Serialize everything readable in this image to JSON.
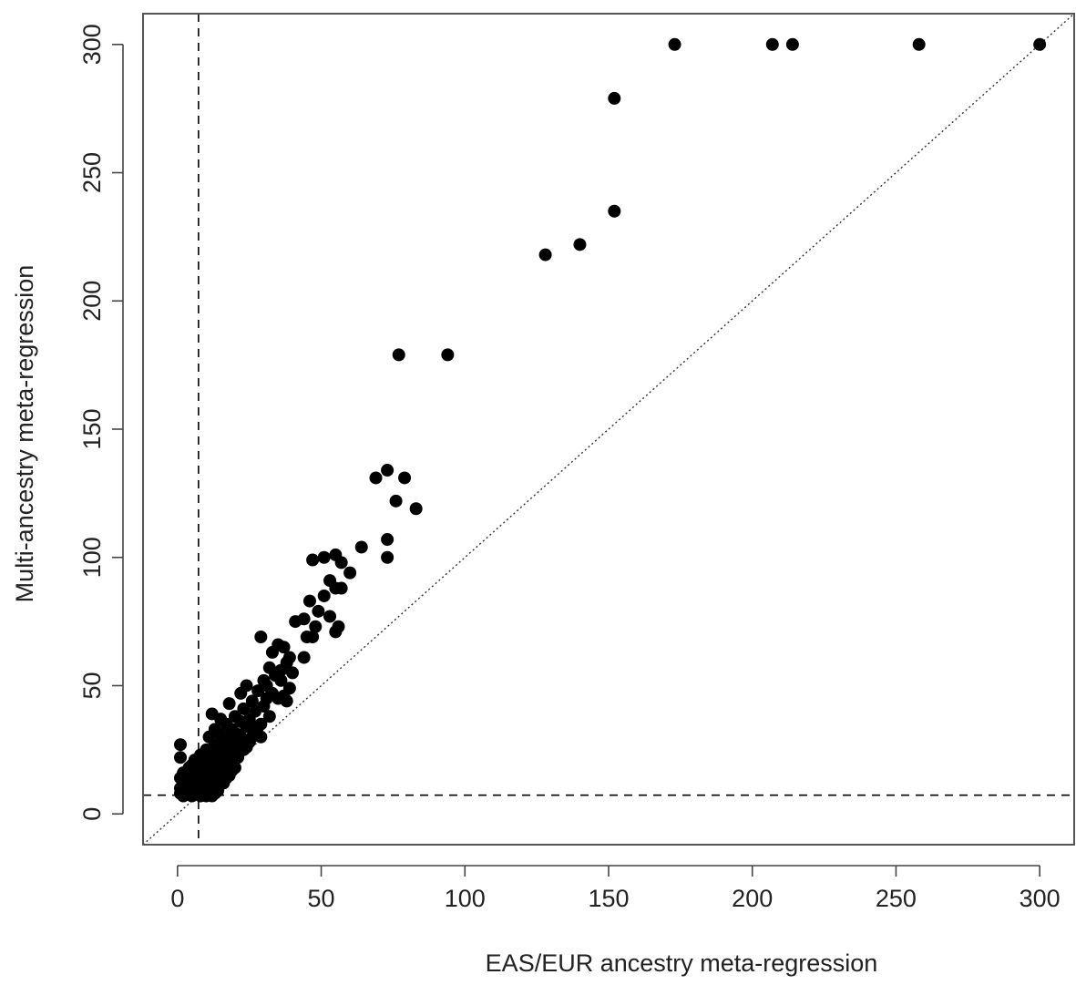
{
  "chart_data": {
    "type": "scatter",
    "xlabel": "EAS/EUR ancestry meta-regression",
    "ylabel": "Multi-ancestry meta-regression",
    "xlim": [
      -12,
      312
    ],
    "ylim": [
      -12,
      312
    ],
    "xticks": [
      0,
      50,
      100,
      150,
      200,
      250,
      300
    ],
    "yticks": [
      0,
      50,
      100,
      150,
      200,
      250,
      300
    ],
    "grid": false,
    "reference_lines": {
      "vertical_dashed_x": 7.3,
      "horizontal_dashed_y": 7.3,
      "diagonal_dotted": "y = x"
    },
    "series": [
      {
        "marker": "filled-circle",
        "color": "#000000",
        "points": [
          [
            300,
            300
          ],
          [
            258,
            300
          ],
          [
            214,
            300
          ],
          [
            207,
            300
          ],
          [
            173,
            300
          ],
          [
            152,
            279
          ],
          [
            152,
            235
          ],
          [
            140,
            222
          ],
          [
            128,
            218
          ],
          [
            94,
            179
          ],
          [
            77,
            179
          ],
          [
            73,
            134
          ],
          [
            69,
            131
          ],
          [
            79,
            131
          ],
          [
            76,
            122
          ],
          [
            83,
            119
          ],
          [
            73,
            107
          ],
          [
            73,
            100
          ],
          [
            64,
            104
          ],
          [
            55,
            101
          ],
          [
            51,
            100
          ],
          [
            47,
            99
          ],
          [
            57,
            98
          ],
          [
            60,
            94
          ],
          [
            53,
            91
          ],
          [
            55,
            88
          ],
          [
            57,
            88
          ],
          [
            51,
            85
          ],
          [
            46,
            83
          ],
          [
            49,
            79
          ],
          [
            53,
            77
          ],
          [
            44,
            76
          ],
          [
            41,
            75
          ],
          [
            48,
            73
          ],
          [
            56,
            73
          ],
          [
            55,
            71
          ],
          [
            47,
            69
          ],
          [
            45,
            69
          ],
          [
            29,
            69
          ],
          [
            35,
            66
          ],
          [
            37,
            65
          ],
          [
            39,
            61
          ],
          [
            33,
            63
          ],
          [
            44,
            61
          ],
          [
            38,
            59
          ],
          [
            32,
            57
          ],
          [
            36,
            56
          ],
          [
            40,
            55
          ],
          [
            34,
            54
          ],
          [
            30,
            52
          ],
          [
            36,
            52
          ],
          [
            31,
            50
          ],
          [
            24,
            50
          ],
          [
            39,
            49
          ],
          [
            28,
            48
          ],
          [
            33,
            47
          ],
          [
            22,
            47
          ],
          [
            37,
            46
          ],
          [
            35,
            45
          ],
          [
            31,
            45
          ],
          [
            38,
            44
          ],
          [
            26,
            44
          ],
          [
            18,
            43
          ],
          [
            30,
            42
          ],
          [
            23,
            41
          ],
          [
            27,
            40
          ],
          [
            32,
            38
          ],
          [
            12,
            39
          ],
          [
            20,
            38
          ],
          [
            15,
            37
          ],
          [
            25,
            37
          ],
          [
            22,
            36
          ],
          [
            29,
            35
          ],
          [
            17,
            35
          ],
          [
            24,
            34
          ],
          [
            13,
            33
          ],
          [
            19,
            33
          ],
          [
            27,
            32
          ],
          [
            21,
            31
          ],
          [
            15,
            31
          ],
          [
            29,
            30
          ],
          [
            11,
            30
          ],
          [
            23,
            29
          ],
          [
            18,
            28
          ],
          [
            25,
            28
          ],
          [
            13,
            27
          ],
          [
            20,
            26
          ],
          [
            16,
            26
          ],
          [
            23,
            25
          ],
          [
            10,
            25
          ],
          [
            1,
            27
          ],
          [
            17,
            24
          ],
          [
            19,
            23
          ],
          [
            12,
            23
          ],
          [
            14,
            22
          ],
          [
            8,
            23
          ],
          [
            1,
            22
          ],
          [
            21,
            22
          ],
          [
            16,
            21
          ],
          [
            11,
            21
          ],
          [
            18,
            20
          ],
          [
            6,
            21
          ],
          [
            13,
            19
          ],
          [
            9,
            19
          ],
          [
            15,
            18
          ],
          [
            4,
            18
          ],
          [
            11,
            18
          ],
          [
            19,
            17
          ],
          [
            7,
            17
          ],
          [
            14,
            16
          ],
          [
            2,
            16
          ],
          [
            9,
            16
          ],
          [
            12,
            15
          ],
          [
            5,
            15
          ],
          [
            17,
            14
          ],
          [
            1,
            14
          ],
          [
            10,
            14
          ],
          [
            7,
            13
          ],
          [
            13,
            13
          ],
          [
            3,
            13
          ],
          [
            15,
            12
          ],
          [
            11,
            12
          ],
          [
            5,
            12
          ],
          [
            8,
            11
          ],
          [
            2,
            11
          ],
          [
            12,
            11
          ],
          [
            14,
            10
          ],
          [
            6,
            10
          ],
          [
            9,
            10
          ],
          [
            1,
            10
          ],
          [
            4,
            9
          ],
          [
            11,
            9
          ],
          [
            7,
            9
          ],
          [
            13,
            8
          ],
          [
            3,
            8
          ],
          [
            9,
            8
          ],
          [
            6,
            8
          ],
          [
            1,
            8
          ],
          [
            10,
            7
          ],
          [
            8,
            7
          ],
          [
            5,
            7
          ],
          [
            12,
            7
          ],
          [
            2,
            7
          ],
          [
            14,
            9
          ],
          [
            16,
            12
          ],
          [
            18,
            15
          ],
          [
            20,
            18
          ],
          [
            21,
            24
          ],
          [
            24,
            26
          ],
          [
            26,
            30
          ],
          [
            28,
            34
          ],
          [
            22,
            30
          ],
          [
            19,
            27
          ],
          [
            17,
            30
          ],
          [
            16,
            28
          ],
          [
            15,
            25
          ],
          [
            14,
            20
          ],
          [
            10,
            17
          ],
          [
            8,
            20
          ],
          [
            6,
            18
          ],
          [
            4,
            12
          ],
          [
            2,
            9
          ],
          [
            3,
            16
          ],
          [
            5,
            19
          ]
        ]
      }
    ]
  }
}
